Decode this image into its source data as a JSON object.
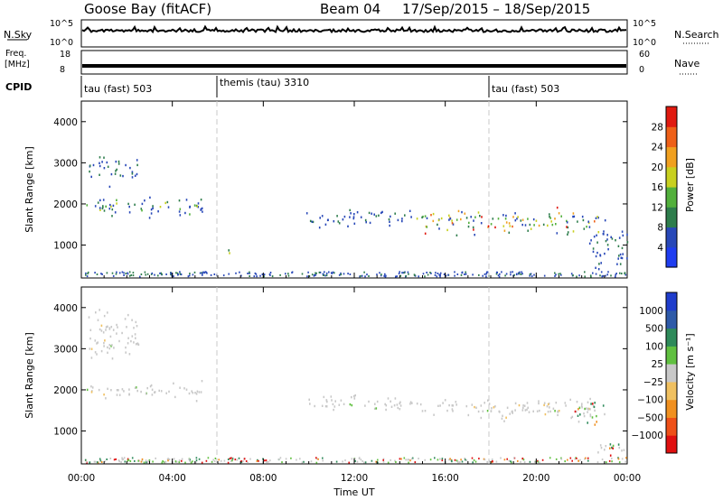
{
  "header": {
    "station": "Goose Bay (fitACF)",
    "beam": "Beam 04",
    "dates": "17/Sep/2015 – 18/Sep/2015"
  },
  "top_panels": {
    "nsky_label": "N.Sky",
    "nsearch_label": "N.Search",
    "nsky_ticks": [
      "10^5",
      "10^0"
    ],
    "nsearch_ticks": [
      "10^5",
      "10^0"
    ],
    "freq_label": "Freq.",
    "freq_unit": "[MHz]",
    "freq_ticks": [
      "18",
      "8"
    ],
    "nave_label": "Nave",
    "nave_ticks": [
      "60",
      "0"
    ],
    "cpid_label": "CPID",
    "cpid_segments": [
      {
        "label": "tau (fast) 503",
        "start_hour": 0
      },
      {
        "label": "themis (tau) 3310",
        "start_hour": 6
      },
      {
        "label": "tau (fast) 503",
        "start_hour": 18
      }
    ]
  },
  "chart_data": [
    {
      "type": "heatmap",
      "title": "",
      "xlabel": "Time UT",
      "ylabel": "Slant Range [km]",
      "xlim_hours": [
        0,
        24
      ],
      "ylim": [
        200,
        4500
      ],
      "yticks": [
        1000,
        2000,
        3000,
        4000
      ],
      "xtick_labels": [
        "00:00",
        "04:00",
        "08:00",
        "12:00",
        "16:00",
        "20:00",
        "00:00"
      ],
      "colorbar": {
        "label": "Power [dB]",
        "ticks": [
          "4",
          "8",
          "12",
          "16",
          "20",
          "24",
          "28"
        ],
        "colors": [
          "#1f3df0",
          "#2848b8",
          "#2e7d4c",
          "#52b03c",
          "#c8d020",
          "#f0a020",
          "#ee6018",
          "#e01a10"
        ]
      },
      "scatter_regions": [
        {
          "t_start": 0.2,
          "t_end": 5.3,
          "r_min": 1600,
          "r_max": 2300,
          "level": "mid"
        },
        {
          "t_start": 0.3,
          "t_end": 2.5,
          "r_min": 2400,
          "r_max": 3300,
          "level": "low"
        },
        {
          "t_start": 6.0,
          "t_end": 6.5,
          "r_min": 800,
          "r_max": 1000,
          "level": "mid"
        },
        {
          "t_start": 9.8,
          "t_end": 14.5,
          "r_min": 1400,
          "r_max": 2000,
          "level": "low"
        },
        {
          "t_start": 14.5,
          "t_end": 22.8,
          "r_min": 1200,
          "r_max": 2000,
          "level": "high"
        },
        {
          "t_start": 22.3,
          "t_end": 24.0,
          "r_min": 200,
          "r_max": 1800,
          "level": "low"
        }
      ]
    },
    {
      "type": "heatmap",
      "title": "",
      "xlabel": "Time UT",
      "ylabel": "Slant Range [km]",
      "xlim_hours": [
        0,
        24
      ],
      "ylim": [
        200,
        4500
      ],
      "yticks": [
        1000,
        2000,
        3000,
        4000
      ],
      "xtick_labels": [
        "00:00",
        "04:00",
        "08:00",
        "12:00",
        "16:00",
        "20:00",
        "00:00"
      ],
      "colorbar": {
        "label": "Velocity [m s⁻¹]",
        "ticks": [
          "1000",
          "500",
          "100",
          "25",
          "−25",
          "−100",
          "−500",
          "−1000"
        ],
        "colors": [
          "#1f3dcc",
          "#2e5aa8",
          "#2e8a5a",
          "#60c040",
          "#c8c8c8",
          "#f0c060",
          "#f09020",
          "#ee5018",
          "#e01010"
        ]
      },
      "scatter_regions": [
        {
          "t_start": 0.2,
          "t_end": 5.3,
          "r_min": 1700,
          "r_max": 2300,
          "level": "ground"
        },
        {
          "t_start": 0.3,
          "t_end": 2.5,
          "r_min": 2400,
          "r_max": 4200,
          "level": "ground"
        },
        {
          "t_start": 9.8,
          "t_end": 14.5,
          "r_min": 1400,
          "r_max": 2000,
          "level": "ground"
        },
        {
          "t_start": 14.5,
          "t_end": 22.8,
          "r_min": 1200,
          "r_max": 1900,
          "level": "ground"
        },
        {
          "t_start": 21.5,
          "t_end": 23.0,
          "r_min": 1000,
          "r_max": 2000,
          "level": "mixed"
        },
        {
          "t_start": 22.5,
          "t_end": 24.0,
          "r_min": 300,
          "r_max": 900,
          "level": "mixed"
        }
      ]
    }
  ]
}
